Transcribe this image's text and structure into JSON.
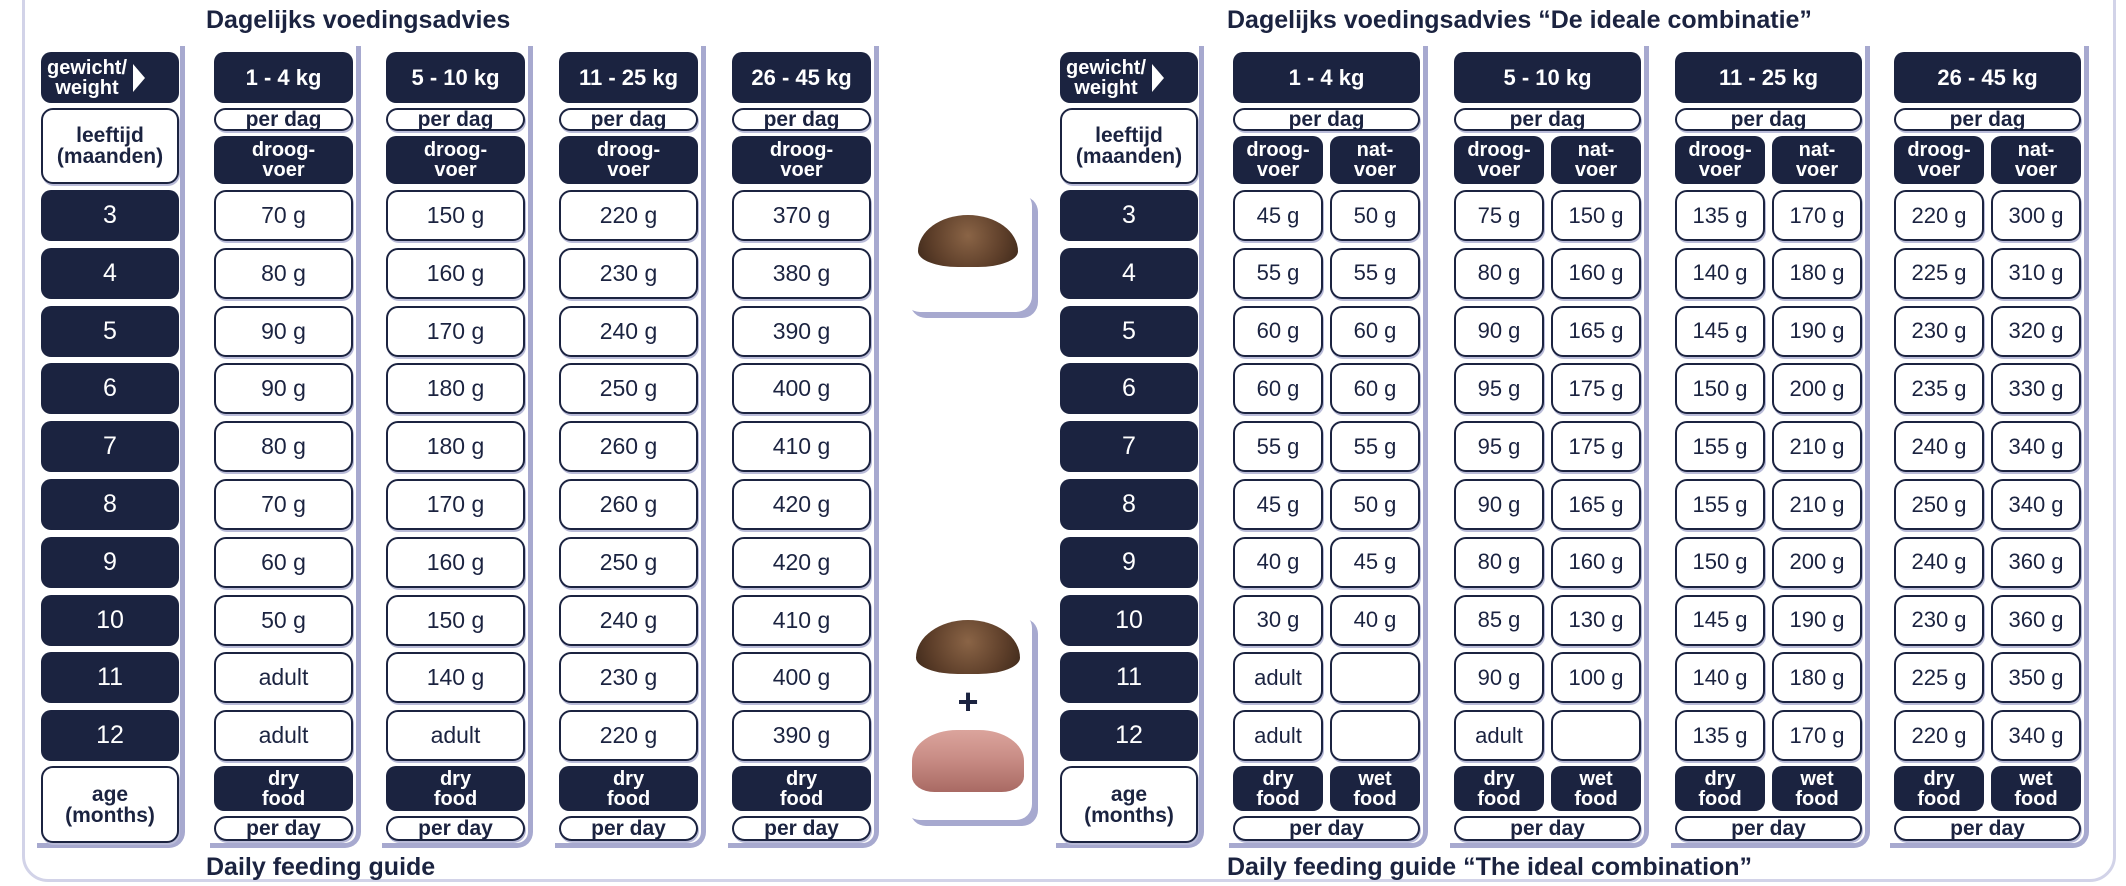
{
  "colors": {
    "navy": "#1b2340",
    "lavender": "#a7a9cf",
    "kibble": "#6b4a32",
    "pate": "#c98d86"
  },
  "labels": {
    "weight": "gewicht/\nweight",
    "age_nl": "leeftijd\n(maanden)",
    "age_en": "age\n(months)",
    "per_dag": "per dag",
    "per_day": "per day",
    "dry_nl": "droog-\nvoer",
    "wet_nl": "nat-\nvoer",
    "dry_en": "dry\nfood",
    "wet_en": "wet\nfood",
    "plus": "+"
  },
  "ages": [
    "3",
    "4",
    "5",
    "6",
    "7",
    "8",
    "9",
    "10",
    "11",
    "12"
  ],
  "left": {
    "title": "Dagelijks voedingsadvies",
    "footer": "Daily feeding guide",
    "columns": [
      {
        "weight": "1 - 4 kg",
        "dry": [
          "70 g",
          "80 g",
          "90 g",
          "90 g",
          "80 g",
          "70 g",
          "60 g",
          "50 g",
          "adult",
          "adult"
        ]
      },
      {
        "weight": "5 - 10 kg",
        "dry": [
          "150 g",
          "160 g",
          "170 g",
          "180 g",
          "180 g",
          "170 g",
          "160 g",
          "150 g",
          "140 g",
          "adult"
        ]
      },
      {
        "weight": "11 - 25 kg",
        "dry": [
          "220 g",
          "230 g",
          "240 g",
          "250 g",
          "260 g",
          "260 g",
          "250 g",
          "240 g",
          "230 g",
          "220 g"
        ]
      },
      {
        "weight": "26 - 45 kg",
        "dry": [
          "370 g",
          "380 g",
          "390 g",
          "400 g",
          "410 g",
          "420 g",
          "420 g",
          "410 g",
          "400 g",
          "390 g"
        ]
      }
    ]
  },
  "right": {
    "title": "Dagelijks voedingsadvies “De ideale combinatie”",
    "footer": "Daily feeding guide “The ideal combination”",
    "columns": [
      {
        "weight": "1 - 4 kg",
        "dry": [
          "45 g",
          "55 g",
          "60 g",
          "60 g",
          "55 g",
          "45 g",
          "40 g",
          "30 g",
          "adult",
          "adult"
        ],
        "wet": [
          "50 g",
          "55 g",
          "60 g",
          "60 g",
          "55 g",
          "50 g",
          "45 g",
          "40 g",
          "",
          ""
        ]
      },
      {
        "weight": "5 - 10 kg",
        "dry": [
          "75 g",
          "80 g",
          "90 g",
          "95 g",
          "95 g",
          "90 g",
          "80 g",
          "85 g",
          "90 g",
          "adult"
        ],
        "wet": [
          "150 g",
          "160 g",
          "165 g",
          "175 g",
          "175 g",
          "165 g",
          "160 g",
          "130 g",
          "100 g",
          ""
        ]
      },
      {
        "weight": "11 - 25 kg",
        "dry": [
          "135 g",
          "140 g",
          "145 g",
          "150 g",
          "155 g",
          "155 g",
          "150 g",
          "145 g",
          "140 g",
          "135 g"
        ],
        "wet": [
          "170 g",
          "180 g",
          "190 g",
          "200 g",
          "210 g",
          "210 g",
          "200 g",
          "190 g",
          "180 g",
          "170 g"
        ]
      },
      {
        "weight": "26 - 45 kg",
        "dry": [
          "220 g",
          "225 g",
          "230 g",
          "235 g",
          "240 g",
          "250 g",
          "240 g",
          "230 g",
          "225 g",
          "220 g"
        ],
        "wet": [
          "300 g",
          "310 g",
          "320 g",
          "330 g",
          "340 g",
          "340 g",
          "360 g",
          "360 g",
          "350 g",
          "340 g"
        ]
      }
    ]
  }
}
